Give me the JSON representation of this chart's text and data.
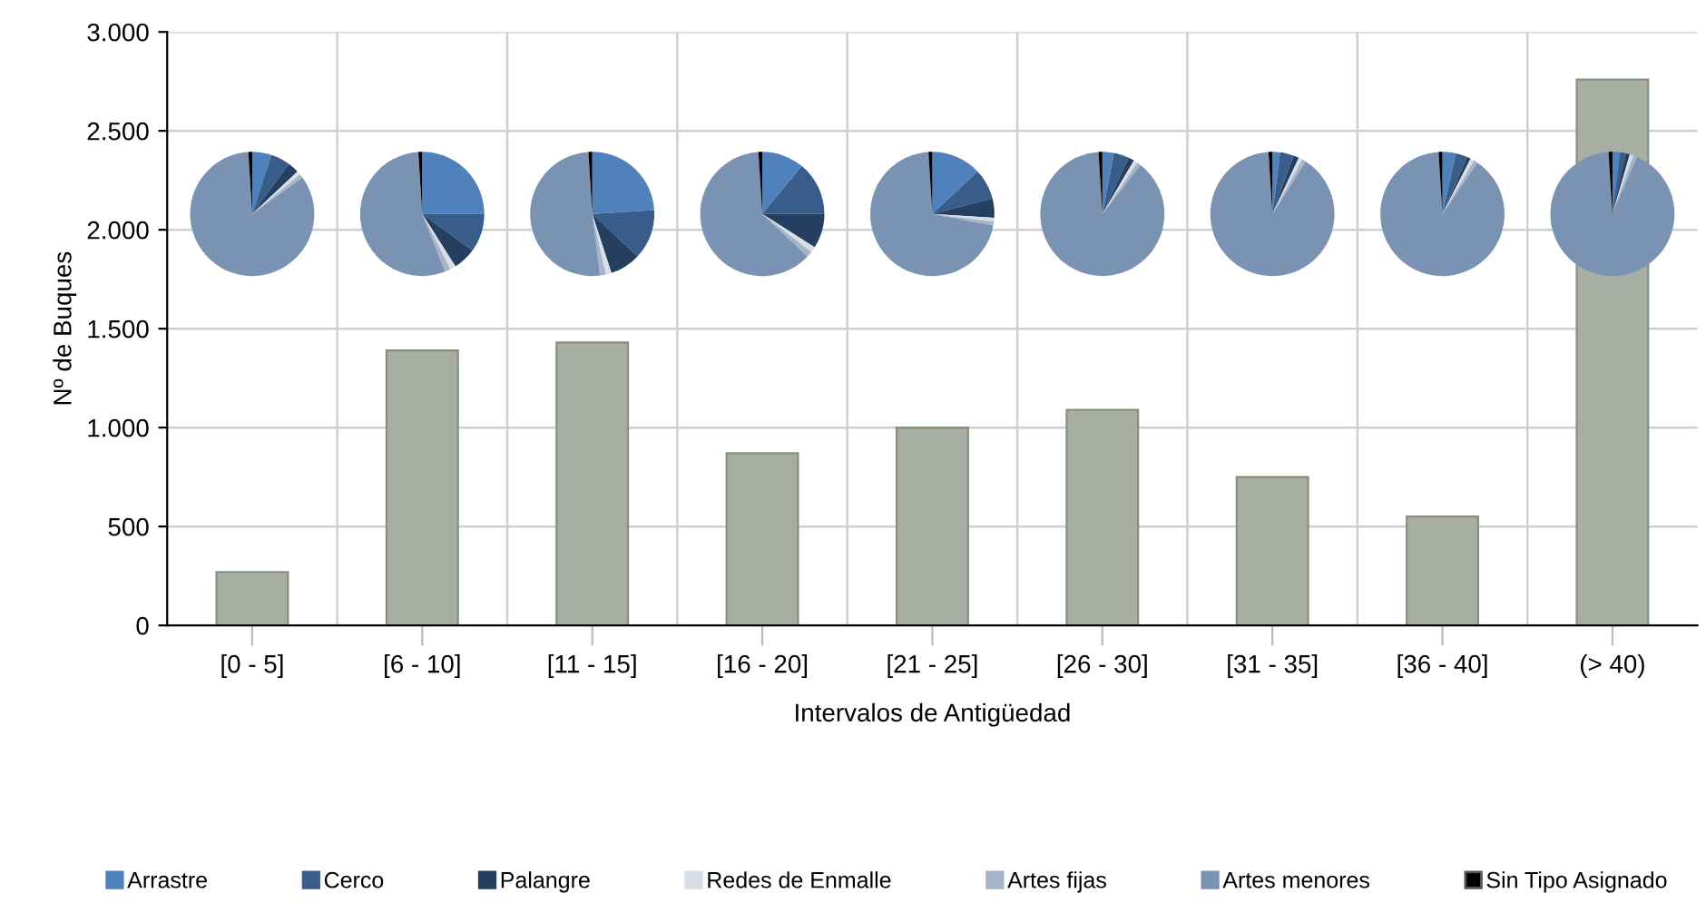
{
  "chart_data": [
    {
      "type": "bar",
      "xlabel": "Intervalos de Antigüedad",
      "ylabel": "Nº de Buques",
      "categories": [
        "[0 - 5]",
        "[6 - 10]",
        "[11 - 15]",
        "[16 - 20]",
        "[21 - 25]",
        "[26 - 30]",
        "[31 - 35]",
        "[36 - 40]",
        "(> 40)"
      ],
      "values": [
        270,
        1390,
        1430,
        870,
        1000,
        1090,
        750,
        550,
        2760
      ],
      "color": "#a7aea3",
      "ylim": [
        0,
        3000
      ],
      "yticks": [
        0,
        500,
        {
          "value": 1000,
          "label": "1.000"
        },
        {
          "value": 1500,
          "label": "1.500"
        },
        {
          "value": 2000,
          "label": "2.000"
        },
        {
          "value": 2500,
          "label": "2.500"
        },
        {
          "value": 3000,
          "label": "3.000"
        }
      ],
      "grid": true
    },
    {
      "type": "pie",
      "categories": [
        "Arrastre",
        "Cerco",
        "Palangre",
        "Redes de Enmalle",
        "Artes fijas",
        "Artes menores",
        "Sin Tipo Asignado"
      ],
      "colors": [
        "#4f81bd",
        "#385d8a",
        "#243f60",
        "#d9dde6",
        "#a6b3c8",
        "#7a93b2",
        "#000000"
      ],
      "values": [
        5,
        5,
        3,
        1,
        1,
        84,
        1
      ],
      "legend": "bottom"
    },
    {
      "type": "pie",
      "categories": [
        null,
        null,
        null,
        null,
        null,
        null,
        null
      ],
      "colors": [
        "#4f81bd",
        "#385d8a",
        "#243f60",
        "#d9dde6",
        "#a6b3c8",
        "#7a93b2",
        "#000000"
      ],
      "values": [
        25,
        10,
        6,
        1.5,
        1.5,
        55,
        1
      ]
    },
    {
      "type": "pie",
      "categories": [
        null,
        null,
        null,
        null,
        null,
        null,
        null
      ],
      "colors": [
        "#4f81bd",
        "#385d8a",
        "#243f60",
        "#d9dde6",
        "#a6b3c8",
        "#7a93b2",
        "#000000"
      ],
      "values": [
        24,
        13,
        8,
        1.5,
        1.5,
        51,
        1
      ]
    },
    {
      "type": "pie",
      "categories": [
        null,
        null,
        null,
        null,
        null,
        null,
        null
      ],
      "colors": [
        "#4f81bd",
        "#385d8a",
        "#243f60",
        "#d9dde6",
        "#a6b3c8",
        "#7a93b2",
        "#000000"
      ],
      "values": [
        11,
        14,
        9,
        1.5,
        1.5,
        62,
        1
      ]
    },
    {
      "type": "pie",
      "categories": [
        null,
        null,
        null,
        null,
        null,
        null,
        null
      ],
      "colors": [
        "#4f81bd",
        "#385d8a",
        "#243f60",
        "#d9dde6",
        "#a6b3c8",
        "#7a93b2",
        "#000000"
      ],
      "values": [
        13,
        8,
        5,
        1,
        1,
        71,
        1
      ]
    },
    {
      "type": "pie",
      "categories": [
        null,
        null,
        null,
        null,
        null,
        null,
        null
      ],
      "colors": [
        "#4f81bd",
        "#385d8a",
        "#243f60",
        "#d9dde6",
        "#a6b3c8",
        "#7a93b2",
        "#000000"
      ],
      "values": [
        3,
        4,
        1.5,
        1,
        1,
        88.5,
        1
      ]
    },
    {
      "type": "pie",
      "categories": [
        null,
        null,
        null,
        null,
        null,
        null,
        null
      ],
      "colors": [
        "#4f81bd",
        "#385d8a",
        "#243f60",
        "#d9dde6",
        "#a6b3c8",
        "#7a93b2",
        "#000000"
      ],
      "values": [
        2,
        3.5,
        1.5,
        1,
        1,
        90,
        1
      ]
    },
    {
      "type": "pie",
      "categories": [
        null,
        null,
        null,
        null,
        null,
        null,
        null
      ],
      "colors": [
        "#4f81bd",
        "#385d8a",
        "#243f60",
        "#d9dde6",
        "#a6b3c8",
        "#7a93b2",
        "#000000"
      ],
      "values": [
        3.5,
        3,
        1,
        1,
        1,
        89.5,
        1
      ]
    },
    {
      "type": "pie",
      "categories": [
        null,
        null,
        null,
        null,
        null,
        null,
        null
      ],
      "colors": [
        "#4f81bd",
        "#385d8a",
        "#243f60",
        "#d9dde6",
        "#a6b3c8",
        "#7a93b2",
        "#000000"
      ],
      "values": [
        2,
        1.5,
        1,
        1,
        1,
        92.5,
        1
      ]
    }
  ]
}
